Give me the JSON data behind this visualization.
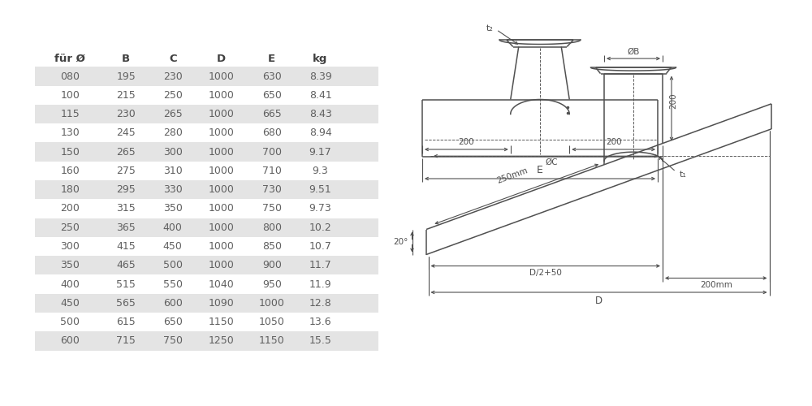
{
  "headers": [
    "für Ø",
    "B",
    "C",
    "D",
    "E",
    "kg"
  ],
  "rows": [
    [
      "080",
      "195",
      "230",
      "1000",
      "630",
      "8.39"
    ],
    [
      "100",
      "215",
      "250",
      "1000",
      "650",
      "8.41"
    ],
    [
      "115",
      "230",
      "265",
      "1000",
      "665",
      "8.43"
    ],
    [
      "130",
      "245",
      "280",
      "1000",
      "680",
      "8.94"
    ],
    [
      "150",
      "265",
      "300",
      "1000",
      "700",
      "9.17"
    ],
    [
      "160",
      "275",
      "310",
      "1000",
      "710",
      "9.3"
    ],
    [
      "180",
      "295",
      "330",
      "1000",
      "730",
      "9.51"
    ],
    [
      "200",
      "315",
      "350",
      "1000",
      "750",
      "9.73"
    ],
    [
      "250",
      "365",
      "400",
      "1000",
      "800",
      "10.2"
    ],
    [
      "300",
      "415",
      "450",
      "1000",
      "850",
      "10.7"
    ],
    [
      "350",
      "465",
      "500",
      "1000",
      "900",
      "11.7"
    ],
    [
      "400",
      "515",
      "550",
      "1040",
      "950",
      "11.9"
    ],
    [
      "450",
      "565",
      "600",
      "1090",
      "1000",
      "12.8"
    ],
    [
      "500",
      "615",
      "650",
      "1150",
      "1050",
      "13.6"
    ],
    [
      "600",
      "715",
      "750",
      "1250",
      "1150",
      "15.5"
    ]
  ],
  "shaded_rows": [
    0,
    2,
    4,
    6,
    8,
    10,
    12,
    14
  ],
  "bg_color": "#ffffff",
  "shade_color": "#e4e4e4",
  "text_color": "#606060",
  "header_color": "#404040",
  "line_color": "#505050"
}
